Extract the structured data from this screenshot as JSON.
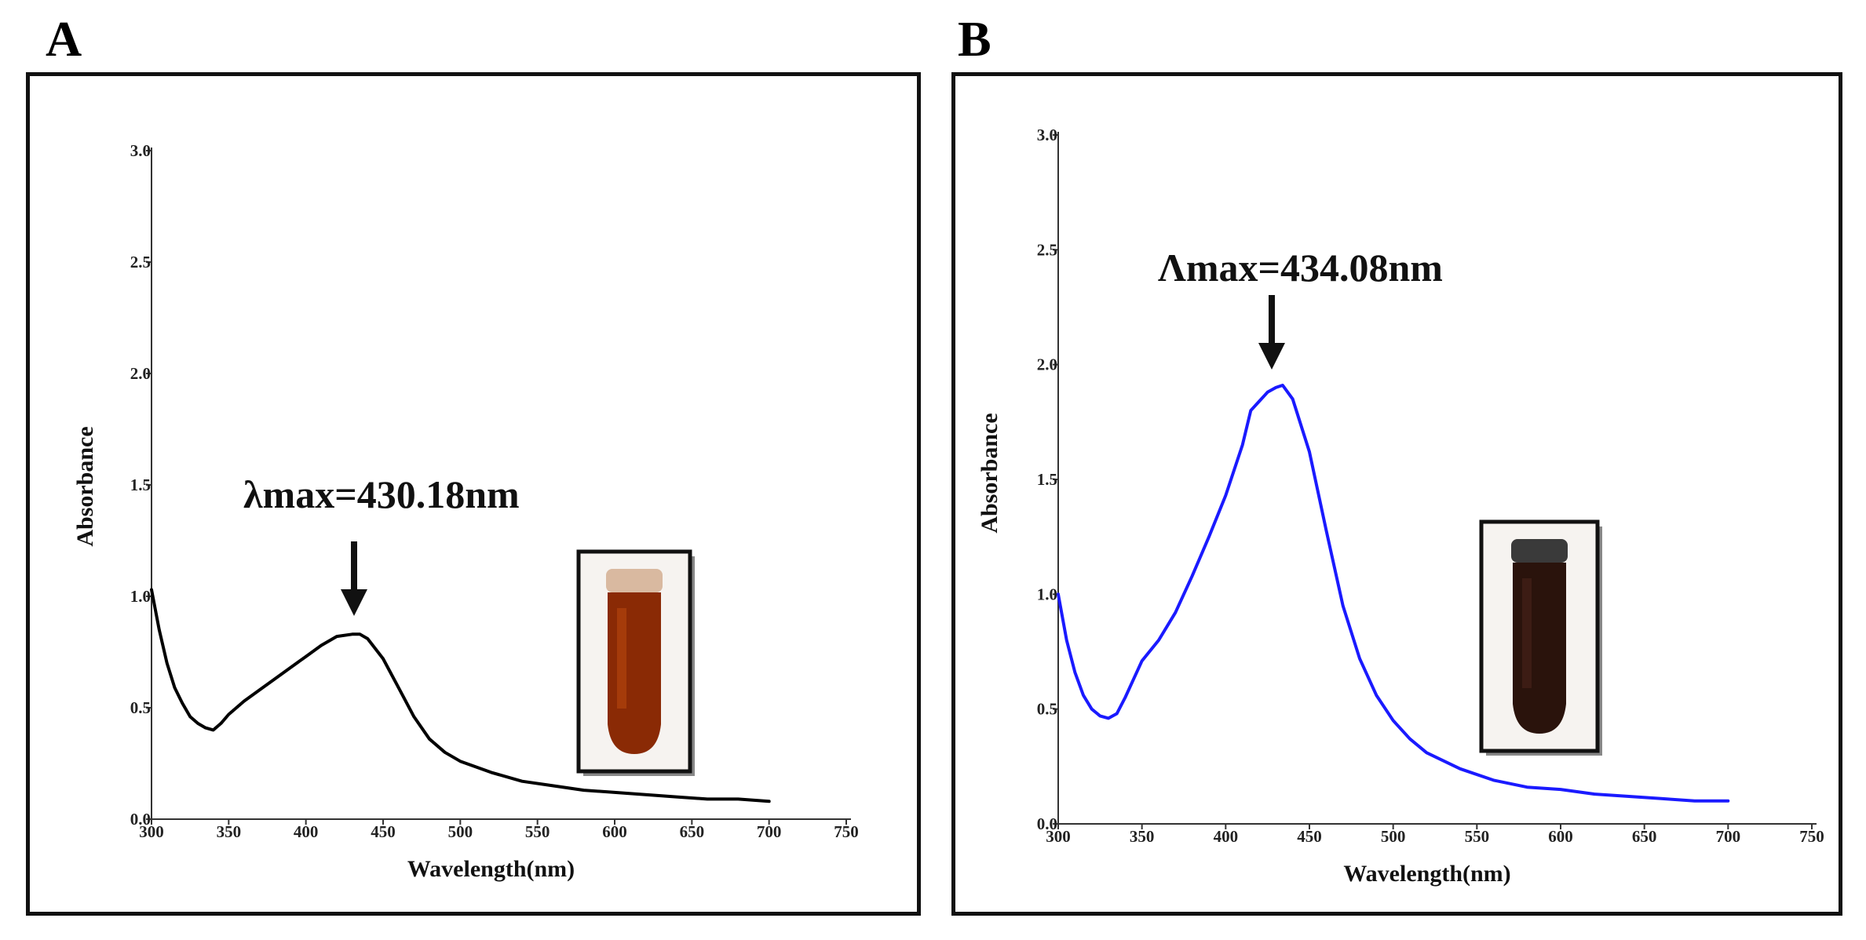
{
  "panels": {
    "a": {
      "letter": "A"
    },
    "b": {
      "letter": "B"
    }
  },
  "chart_data": [
    {
      "type": "line",
      "panel": "A",
      "xlabel": "Wavelength(nm)",
      "ylabel": "Absorbance",
      "xlim": [
        300,
        750
      ],
      "ylim": [
        0,
        3.0
      ],
      "x_ticks": [
        "300",
        "350",
        "400",
        "450",
        "500",
        "550",
        "600",
        "650",
        "700",
        "750"
      ],
      "y_ticks": [
        "0.0",
        "0.5",
        "1.0",
        "1.5",
        "2.0",
        "2.5",
        "3.0"
      ],
      "annotation": "λmax=430.18nm",
      "peak": {
        "x": 430.18,
        "y": 0.83
      },
      "line_color": "#000000",
      "inset": "vial-brown",
      "series": [
        {
          "x": [
            300,
            305,
            310,
            315,
            320,
            325,
            330,
            335,
            340,
            345,
            350,
            360,
            370,
            380,
            390,
            400,
            410,
            420,
            430,
            435,
            440,
            450,
            460,
            470,
            480,
            490,
            500,
            520,
            540,
            560,
            580,
            600,
            620,
            640,
            660,
            680,
            700
          ],
          "values": [
            1.03,
            0.85,
            0.7,
            0.59,
            0.52,
            0.46,
            0.43,
            0.41,
            0.4,
            0.43,
            0.47,
            0.53,
            0.58,
            0.63,
            0.68,
            0.73,
            0.78,
            0.82,
            0.83,
            0.83,
            0.81,
            0.72,
            0.59,
            0.46,
            0.36,
            0.3,
            0.26,
            0.21,
            0.17,
            0.15,
            0.13,
            0.12,
            0.11,
            0.1,
            0.09,
            0.09,
            0.08
          ]
        }
      ]
    },
    {
      "type": "line",
      "panel": "B",
      "xlabel": "Wavelength(nm)",
      "ylabel": "Absorbance",
      "xlim": [
        300,
        750
      ],
      "ylim": [
        0,
        3.0
      ],
      "x_ticks": [
        "300",
        "350",
        "400",
        "450",
        "500",
        "550",
        "600",
        "650",
        "700",
        "750"
      ],
      "y_ticks": [
        "0.0",
        "0.5",
        "1.0",
        "1.5",
        "2.0",
        "2.5",
        "3.0"
      ],
      "annotation": "Λmax=434.08nm",
      "peak": {
        "x": 434.08,
        "y": 1.91
      },
      "line_color": "#1a1aff",
      "inset": "vial-dark",
      "series": [
        {
          "x": [
            300,
            305,
            310,
            315,
            320,
            325,
            330,
            335,
            340,
            345,
            350,
            360,
            370,
            380,
            390,
            400,
            410,
            415,
            420,
            425,
            430,
            434,
            440,
            450,
            460,
            470,
            480,
            490,
            500,
            510,
            520,
            540,
            560,
            580,
            600,
            620,
            640,
            660,
            680,
            700
          ],
          "values": [
            1.0,
            0.8,
            0.66,
            0.56,
            0.5,
            0.47,
            0.46,
            0.48,
            0.55,
            0.63,
            0.71,
            0.8,
            0.92,
            1.08,
            1.25,
            1.43,
            1.65,
            1.8,
            1.84,
            1.88,
            1.9,
            1.91,
            1.85,
            1.62,
            1.28,
            0.95,
            0.72,
            0.56,
            0.45,
            0.37,
            0.31,
            0.24,
            0.19,
            0.16,
            0.15,
            0.13,
            0.12,
            0.11,
            0.1,
            0.1
          ]
        }
      ]
    }
  ]
}
